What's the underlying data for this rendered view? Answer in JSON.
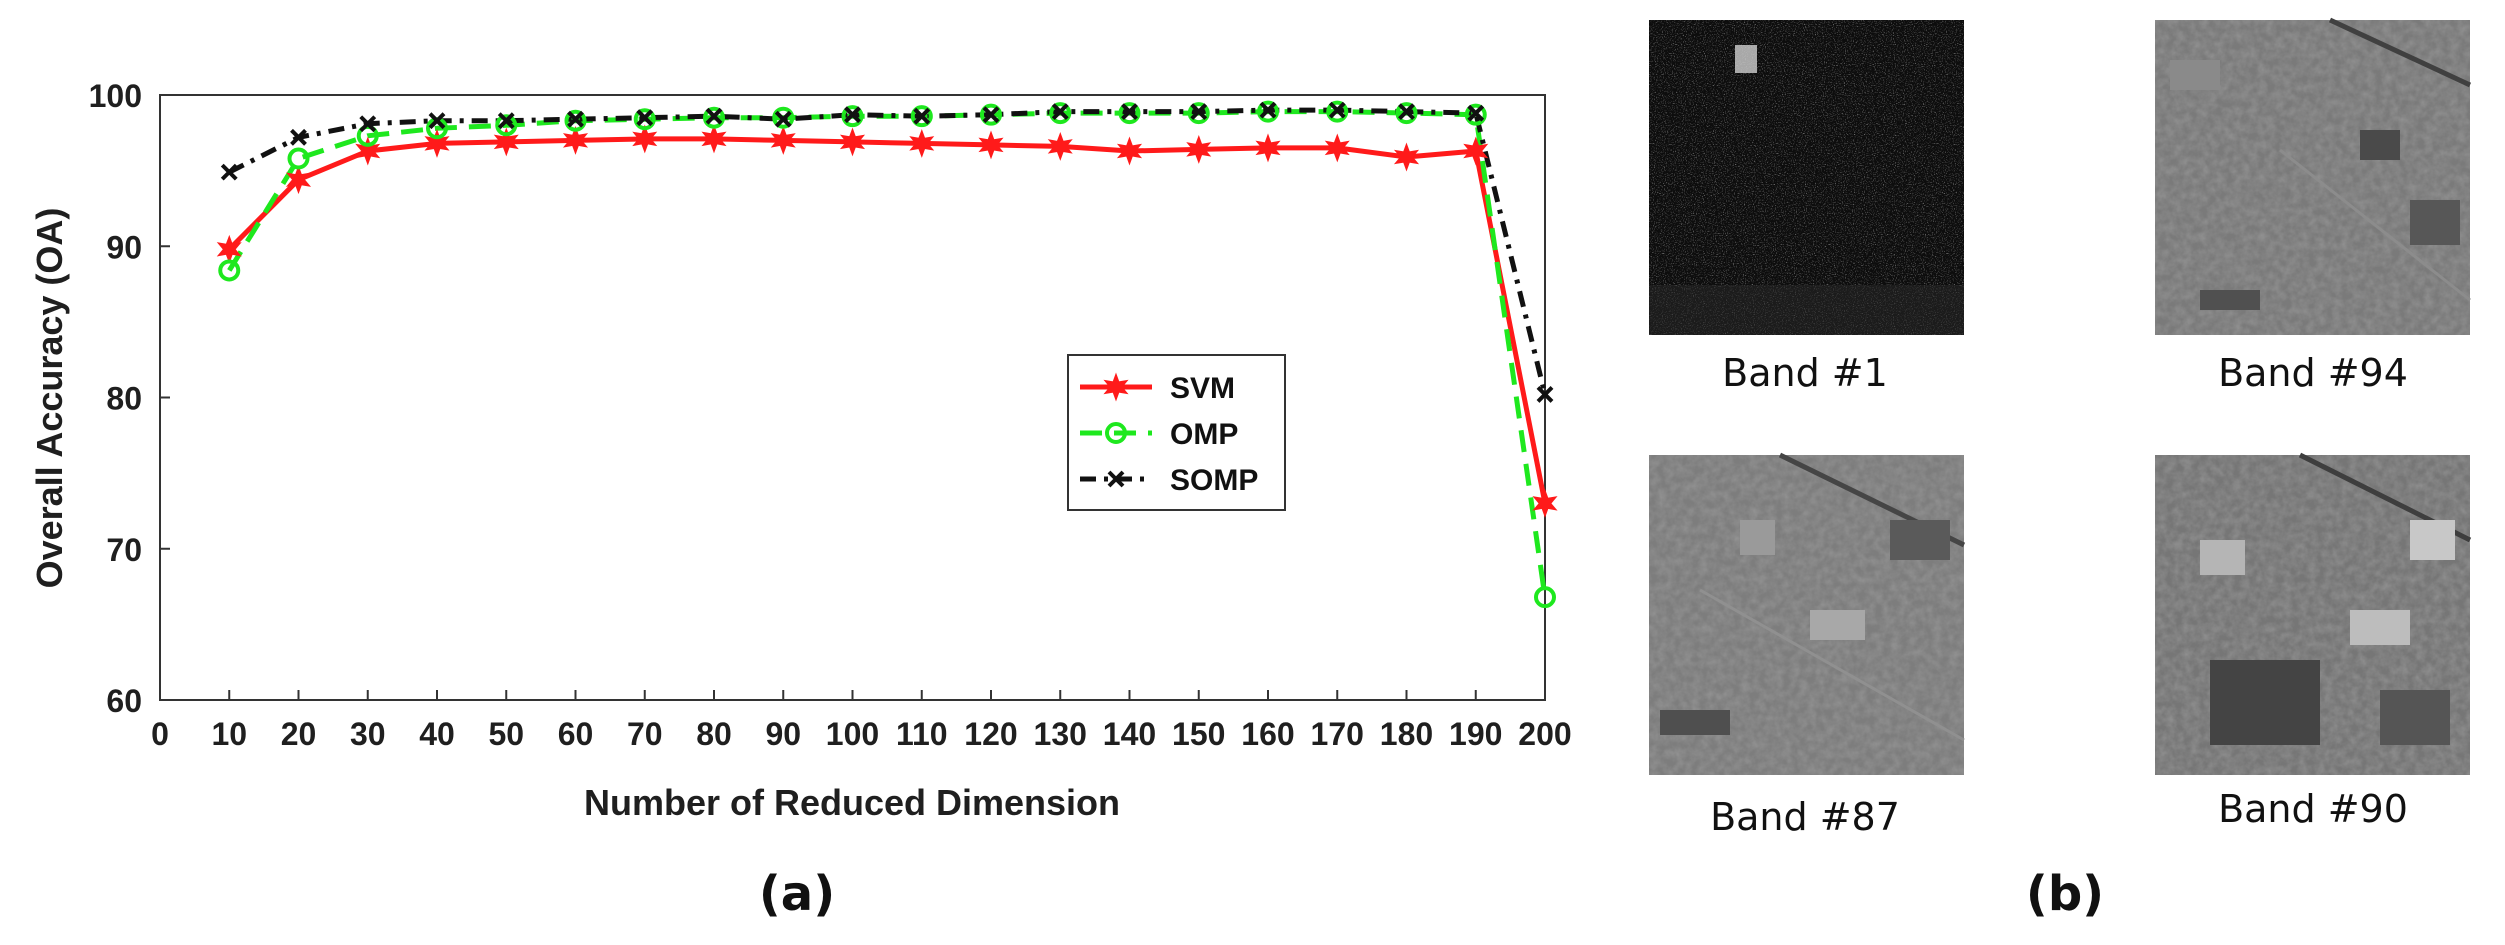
{
  "chart_data": {
    "type": "line",
    "xlabel": "Number of Reduced Dimension",
    "ylabel": "Overall Accuracy (OA)",
    "xlim": [
      0,
      200
    ],
    "ylim": [
      60,
      100
    ],
    "xticks": [
      0,
      10,
      20,
      30,
      40,
      50,
      60,
      70,
      80,
      90,
      100,
      110,
      120,
      130,
      140,
      150,
      160,
      170,
      180,
      190,
      200
    ],
    "yticks": [
      60,
      70,
      80,
      90,
      100
    ],
    "x": [
      10,
      20,
      30,
      40,
      50,
      60,
      70,
      80,
      90,
      100,
      110,
      120,
      130,
      140,
      150,
      160,
      170,
      180,
      190,
      200
    ],
    "series": [
      {
        "name": "SVM",
        "color": "#ff1a1a",
        "marker": "star",
        "dash": "solid",
        "values": [
          89.8,
          94.4,
          96.3,
          96.8,
          96.9,
          97.0,
          97.1,
          97.1,
          97.0,
          96.9,
          96.8,
          96.7,
          96.6,
          96.3,
          96.4,
          96.5,
          96.5,
          95.9,
          96.3,
          73.0
        ]
      },
      {
        "name": "OMP",
        "color": "#1ee81e",
        "marker": "circle",
        "dash": "dashed",
        "values": [
          88.4,
          95.8,
          97.3,
          97.8,
          98.0,
          98.3,
          98.4,
          98.5,
          98.5,
          98.6,
          98.6,
          98.7,
          98.8,
          98.8,
          98.8,
          98.9,
          98.9,
          98.8,
          98.7,
          66.8
        ]
      },
      {
        "name": "SOMP",
        "color": "#111111",
        "marker": "x",
        "dash": "dashdot",
        "values": [
          94.9,
          97.2,
          98.1,
          98.3,
          98.3,
          98.4,
          98.5,
          98.6,
          98.4,
          98.7,
          98.6,
          98.7,
          98.9,
          98.9,
          98.9,
          99.0,
          99.0,
          98.9,
          98.8,
          80.2
        ]
      }
    ],
    "legend_position": "right-middle"
  },
  "captions": {
    "a": "(a)",
    "b": "(b)"
  },
  "bands": [
    {
      "label": "Band #1"
    },
    {
      "label": "Band #94"
    },
    {
      "label": "Band #87"
    },
    {
      "label": "Band #90"
    }
  ]
}
